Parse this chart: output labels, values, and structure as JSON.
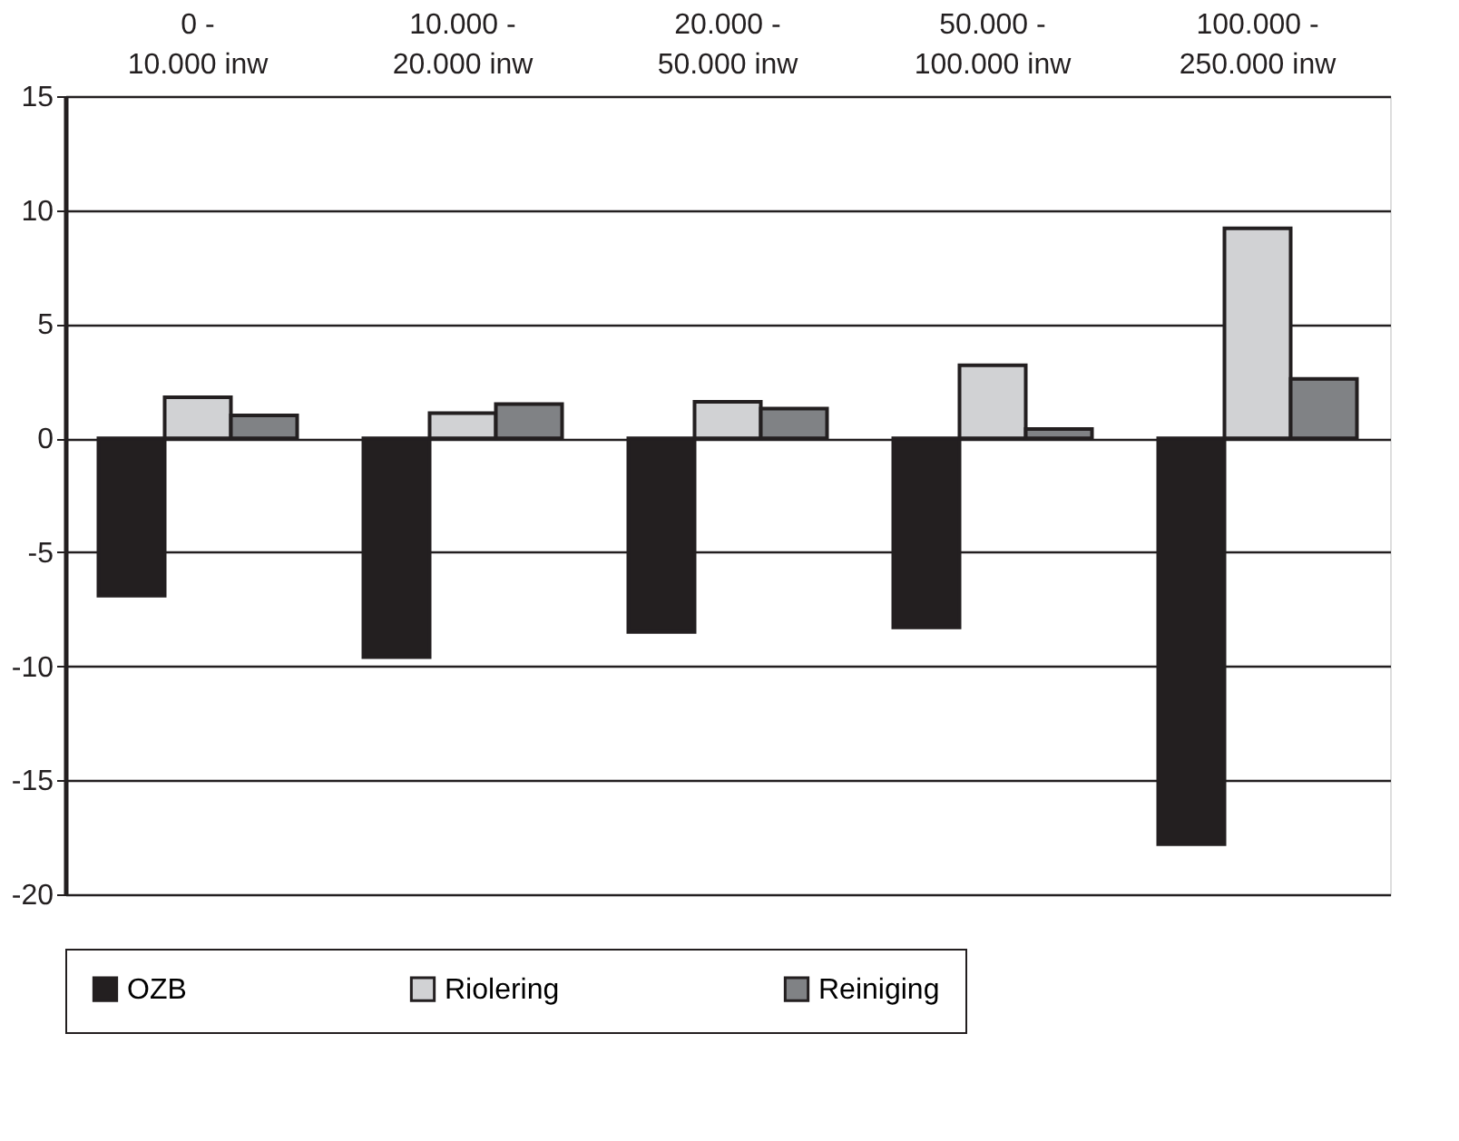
{
  "chart_data": {
    "type": "bar",
    "categories": [
      "0 - 10.000 inw",
      "10.000 - 20.000 inw",
      "20.000 - 50.000 inw",
      "50.000 - 100.000 inw",
      "100.000 - 250.000 inw"
    ],
    "series": [
      {
        "name": "OZB",
        "color": "#231f20",
        "values": [
          -6.9,
          -9.6,
          -8.5,
          -8.3,
          -17.8
        ]
      },
      {
        "name": "Riolering",
        "color": "#d1d2d4",
        "values": [
          1.8,
          1.1,
          1.6,
          3.2,
          9.2
        ]
      },
      {
        "name": "Reiniging",
        "color": "#808285",
        "values": [
          1.0,
          1.5,
          1.3,
          0.4,
          2.6
        ]
      }
    ],
    "ylim": [
      -20,
      15
    ],
    "yticks": [
      -20,
      -15,
      -10,
      -5,
      0,
      5,
      10,
      15
    ],
    "grid": "y",
    "legend": "bottom"
  }
}
